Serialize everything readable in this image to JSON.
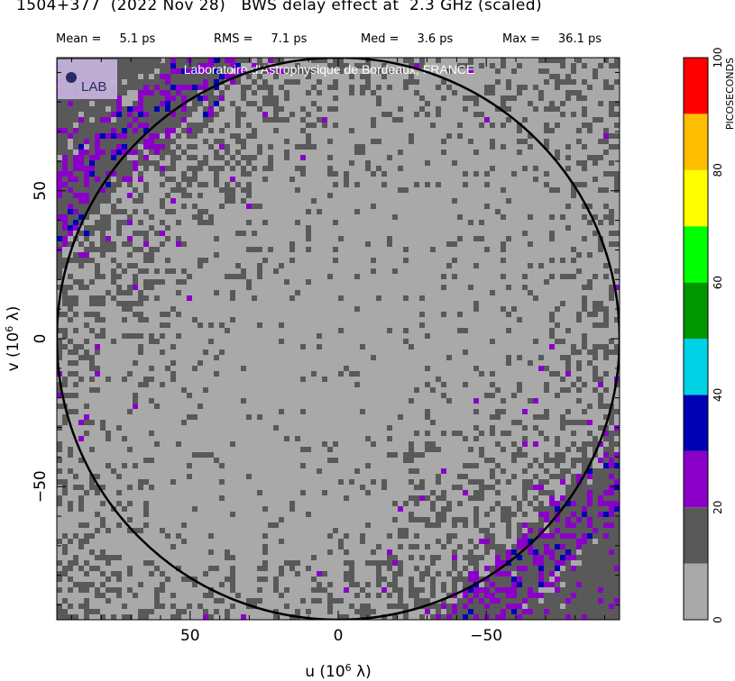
{
  "header": {
    "title": "1504+377  (2022 Nov 28)   BWS delay effect at  2.3 GHz (scaled)",
    "stats": [
      {
        "label": "Mean =",
        "value": "5.1 ps"
      },
      {
        "label": "RMS =",
        "value": "7.1 ps"
      },
      {
        "label": "Med =",
        "value": "3.6 ps"
      },
      {
        "label": "Max =",
        "value": "36.1 ps"
      }
    ]
  },
  "watermark": {
    "text": "Laboratoire d'Astrophysique de Bordeaux, FRANCE",
    "logo_text": "LAB"
  },
  "chart_data": {
    "type": "heatmap",
    "title": "1504+377  (2022 Nov 28)   BWS delay effect at  2.3 GHz (scaled)",
    "xlabel": "u  (10^6 λ)",
    "ylabel": "v  (10^6 λ)",
    "xlim": [
      95,
      -95
    ],
    "ylim": [
      -95,
      95
    ],
    "x_ticks": [
      {
        "value": 50,
        "label": "50"
      },
      {
        "value": 0,
        "label": "0"
      },
      {
        "value": -50,
        "label": "−50"
      }
    ],
    "y_ticks": [
      {
        "value": 50,
        "label": "50"
      },
      {
        "value": 0,
        "label": "0"
      },
      {
        "value": -50,
        "label": "−50"
      }
    ],
    "circle_radius": 95,
    "band_angle_deg": 45,
    "colorbar": {
      "label": "PICOSECONDS",
      "range": [
        0,
        100
      ],
      "ticks": [
        "0",
        "20",
        "40",
        "60",
        "80",
        "100"
      ],
      "levels": [
        {
          "from": 0,
          "to": 10,
          "color": "#a9a9a9"
        },
        {
          "from": 10,
          "to": 20,
          "color": "#595959"
        },
        {
          "from": 20,
          "to": 30,
          "color": "#8a00c8"
        },
        {
          "from": 30,
          "to": 40,
          "color": "#0000b4"
        },
        {
          "from": 40,
          "to": 50,
          "color": "#00d2e6"
        },
        {
          "from": 50,
          "to": 60,
          "color": "#009600"
        },
        {
          "from": 60,
          "to": 70,
          "color": "#00ff00"
        },
        {
          "from": 70,
          "to": 80,
          "color": "#ffff00"
        },
        {
          "from": 80,
          "to": 90,
          "color": "#ffbe00"
        },
        {
          "from": 90,
          "to": 100,
          "color": "#ff0000"
        }
      ]
    },
    "background_color": "#a9a9a9"
  }
}
